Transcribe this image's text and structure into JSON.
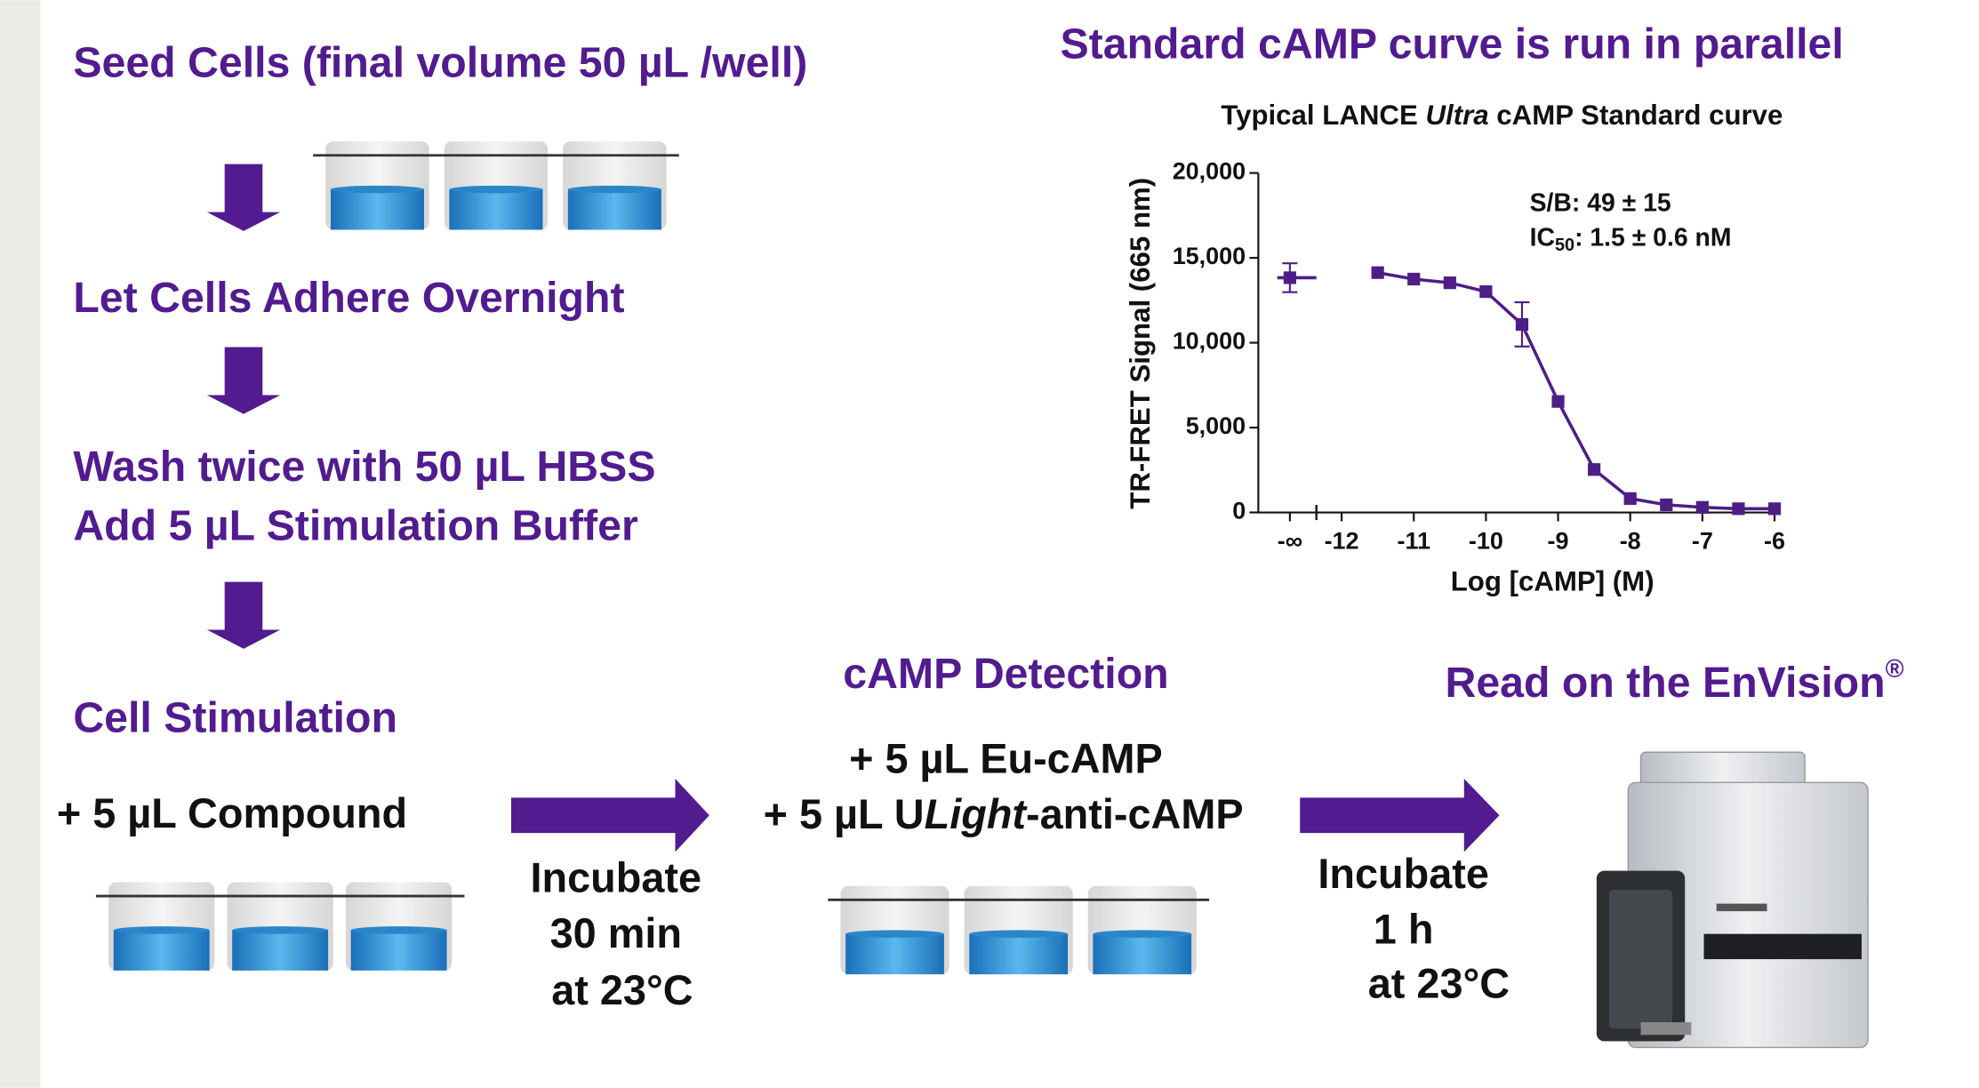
{
  "steps": [
    "Seed Cells (final volume 50 µL /well)",
    "Let Cells Adhere Overnight",
    "Wash twice with 50 µL HBSS",
    "Add 5 µL Stimulation Buffer",
    "Cell Stimulation"
  ],
  "stimulation": {
    "reagent": "+ 5 µL Compound",
    "incubation": [
      "Incubate",
      "30 min",
      "at 23°C"
    ]
  },
  "detection": {
    "title": "cAMP Detection",
    "reagents": [
      [
        "+ 5 µL Eu-cAMP"
      ],
      [
        "+ 5 µL U",
        "Light",
        "-anti-cAMP"
      ]
    ],
    "incubation": [
      "Incubate",
      "1 h",
      "at 23°C"
    ]
  },
  "read": {
    "title": "Read on the EnVision",
    "mark": "®"
  },
  "standard_curve": {
    "heading": "Standard cAMP curve is run in parallel"
  },
  "chart_data": {
    "type": "scatter",
    "title_parts": [
      "Typical LANCE ",
      "Ultra",
      " cAMP Standard curve"
    ],
    "xlabel": "Log [cAMP] (M)",
    "ylabel": "TR-FRET Signal (665 nm)",
    "x": [
      -11.5,
      -11,
      -10.5,
      -10,
      -9.5,
      -9,
      -8.5,
      -8,
      -7.5,
      -7,
      -6.5,
      -6
    ],
    "series": [
      {
        "color": "#4e1e87",
        "values": [
          14130,
          13750,
          13530,
          13010,
          11080,
          6540,
          2530,
          820,
          450,
          300,
          220,
          220
        ],
        "errors": [
          null,
          null,
          null,
          null,
          1300,
          null,
          null,
          null,
          null,
          null,
          null,
          null
        ]
      }
    ],
    "zero_point": {
      "label": "-∞",
      "value": 13830,
      "error": 850
    },
    "xlim": [
      -12.35,
      -6
    ],
    "xticks": [
      -12,
      -11,
      -10,
      -9,
      -8,
      -7,
      -6
    ],
    "ylim": [
      0,
      20000
    ],
    "yticks": [
      0,
      {
        "value": 5000,
        "label": "5,000"
      },
      {
        "value": 10000,
        "label": "10,000"
      },
      {
        "value": 15000,
        "label": "15,000"
      },
      {
        "value": 20000,
        "label": "20,000"
      }
    ],
    "annotations": [
      {
        "text": "S/B: 49 ± 15"
      },
      {
        "text": "IC",
        "sub": "50",
        "rest": ": 1.5 ± 0.6 nM"
      }
    ]
  }
}
